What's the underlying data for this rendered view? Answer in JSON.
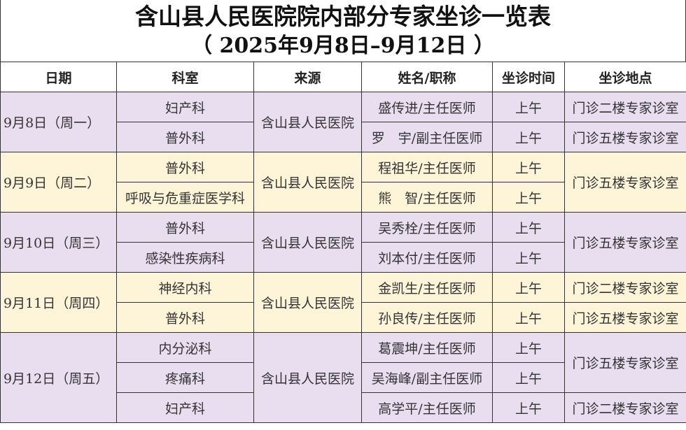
{
  "title": {
    "line1": "含山县人民医院院内部分专家坐诊一览表",
    "line2": "（ 2025年9月8日–9月12日 ）"
  },
  "headers": [
    "日期",
    "科室",
    "来源",
    "姓名/职称",
    "坐诊时间",
    "坐诊地点"
  ],
  "colors": {
    "purple": "#e8def0",
    "yellow": "#fef4d8"
  },
  "days": [
    {
      "date": "9月8日（周一）",
      "source": "含山县人民医院",
      "color": "purple",
      "rows": [
        {
          "dept": "妇产科",
          "doctor": "盛传进/主任医师",
          "time": "上午",
          "place": "门诊二楼专家诊室"
        },
        {
          "dept": "普外科",
          "doctor": "罗　宇/副主任医师",
          "time": "上午",
          "place": "门诊五楼专家诊室"
        }
      ]
    },
    {
      "date": "9月9日（周二）",
      "source": "含山县人民医院",
      "color": "yellow",
      "place": "门诊五楼专家诊室",
      "rows": [
        {
          "dept": "普外科",
          "doctor": "程祖华/主任医师",
          "time": "上午"
        },
        {
          "dept": "呼吸与危重症医学科",
          "doctor": "熊　智/主任医师",
          "time": "上午"
        }
      ]
    },
    {
      "date": "9月10日（周三）",
      "source": "含山县人民医院",
      "color": "purple",
      "place": "门诊五楼专家诊室",
      "rows": [
        {
          "dept": "普外科",
          "doctor": "吴秀栓/主任医师",
          "time": "上午"
        },
        {
          "dept": "感染性疾病科",
          "doctor": "刘本付/主任医师",
          "time": "上午"
        }
      ]
    },
    {
      "date": "9月11日（周四）",
      "source": "含山县人民医院",
      "color": "yellow",
      "rows": [
        {
          "dept": "神经内科",
          "doctor": "金凯生/主任医师",
          "time": "上午",
          "place": "门诊二楼专家诊室"
        },
        {
          "dept": "普外科",
          "doctor": "孙良传/主任医师",
          "time": "上午",
          "place": "门诊五楼专家诊室"
        }
      ]
    },
    {
      "date": "9月12日（周五）",
      "source": "含山县人民医院",
      "color": "purple",
      "rows": [
        {
          "dept": "内分泌科",
          "doctor": "葛震坤/主任医师",
          "time": "上午",
          "place": "门诊五楼专家诊室",
          "placeSpan": 2
        },
        {
          "dept": "疼痛科",
          "doctor": "吴海峰/副主任医师",
          "time": "上午",
          "placeSkip": true
        },
        {
          "dept": "妇产科",
          "doctor": "高学平/主任医师",
          "time": "上午",
          "place": "门诊二楼专家诊室"
        }
      ]
    }
  ]
}
